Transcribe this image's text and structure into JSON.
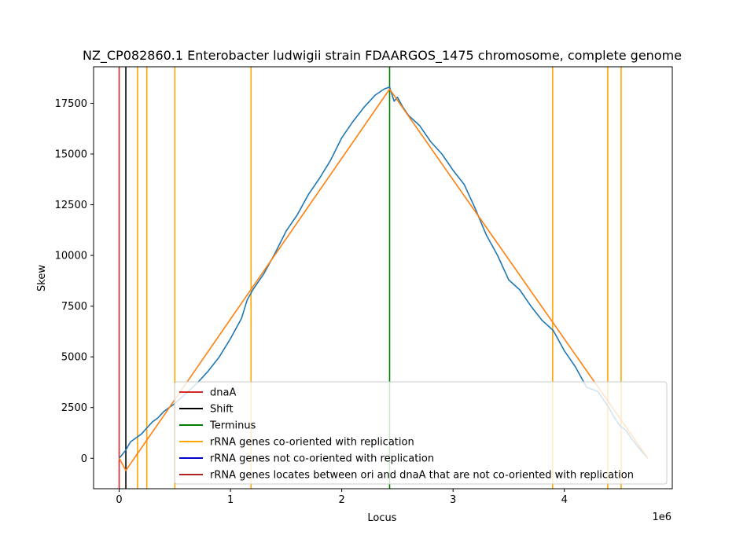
{
  "chart_data": {
    "type": "line",
    "title": "NZ_CP082860.1 Enterobacter ludwigii strain FDAARGOS_1475 chromosome, complete genome",
    "xlabel": "Locus",
    "ylabel": "Skew",
    "x_offset_label": "1e6",
    "xlim": [
      -230000,
      4970000
    ],
    "ylim": [
      -1500,
      19300
    ],
    "xticks": [
      0,
      1,
      2,
      3,
      4
    ],
    "yticks": [
      0,
      2500,
      5000,
      7500,
      10000,
      12500,
      15000,
      17500
    ],
    "grid": false,
    "legend_placement": "lower-right",
    "series": [
      {
        "name": "",
        "color": "#1f77b4",
        "x": [
          0,
          60000,
          100000,
          150000,
          200000,
          250000,
          300000,
          350000,
          400000,
          450000,
          500000,
          600000,
          700000,
          800000,
          900000,
          1000000,
          1100000,
          1150000,
          1200000,
          1300000,
          1400000,
          1500000,
          1600000,
          1700000,
          1800000,
          1900000,
          2000000,
          2100000,
          2200000,
          2300000,
          2380000,
          2430000,
          2470000,
          2500000,
          2550000,
          2600000,
          2700000,
          2800000,
          2900000,
          3000000,
          3100000,
          3200000,
          3300000,
          3400000,
          3500000,
          3600000,
          3700000,
          3800000,
          3900000,
          4000000,
          4100000,
          4200000,
          4300000,
          4400000,
          4450000,
          4500000,
          4550000,
          4600000,
          4700000,
          4750000
        ],
        "y": [
          0,
          400,
          800,
          1000,
          1200,
          1500,
          1800,
          2000,
          2300,
          2500,
          2700,
          3200,
          3700,
          4300,
          5000,
          5900,
          6900,
          7800,
          8300,
          9100,
          10100,
          11200,
          12000,
          13000,
          13800,
          14700,
          15800,
          16600,
          17300,
          17900,
          18200,
          18300,
          17600,
          17800,
          17300,
          16900,
          16400,
          15600,
          15000,
          14200,
          13500,
          12300,
          11000,
          10000,
          8800,
          8300,
          7500,
          6800,
          6300,
          5300,
          4500,
          3500,
          3300,
          2500,
          2000,
          1600,
          1400,
          1000,
          300,
          0
        ]
      },
      {
        "name": "",
        "color": "#ff7f0e",
        "x": [
          0,
          60000,
          2430000,
          4750000
        ],
        "y": [
          0,
          -600,
          18200,
          0
        ]
      }
    ],
    "vlines": [
      {
        "label": "dnaA",
        "x": 0,
        "color": "#d62728"
      },
      {
        "label": "Shift",
        "x": 60000,
        "color": "#000000"
      },
      {
        "label": "Terminus",
        "x": 2430000,
        "color": "#008000"
      },
      {
        "label": "rRNA genes co-oriented with replication",
        "x": 165000,
        "color": "#ffa500"
      },
      {
        "label": "rRNA genes co-oriented with replication",
        "x": 248000,
        "color": "#ffa500"
      },
      {
        "label": "rRNA genes co-oriented with replication",
        "x": 500000,
        "color": "#ffa500"
      },
      {
        "label": "rRNA genes co-oriented with replication",
        "x": 1185000,
        "color": "#ffa500"
      },
      {
        "label": "rRNA genes co-oriented with replication",
        "x": 3895000,
        "color": "#ffa500"
      },
      {
        "label": "rRNA genes co-oriented with replication",
        "x": 4390000,
        "color": "#ffa500"
      },
      {
        "label": "rRNA genes co-oriented with replication",
        "x": 4510000,
        "color": "#ffa500"
      }
    ],
    "legend": [
      {
        "label": "dnaA",
        "color": "#d62728"
      },
      {
        "label": "Shift",
        "color": "#000000"
      },
      {
        "label": "Terminus",
        "color": "#008000"
      },
      {
        "label": "rRNA genes co-oriented with replication",
        "color": "#ffa500"
      },
      {
        "label": "rRNA genes not co-oriented with replication",
        "color": "#0000cd"
      },
      {
        "label": "rRNA genes locates between ori and dnaA that are not co-oriented with replication",
        "color": "#b22222"
      }
    ]
  }
}
